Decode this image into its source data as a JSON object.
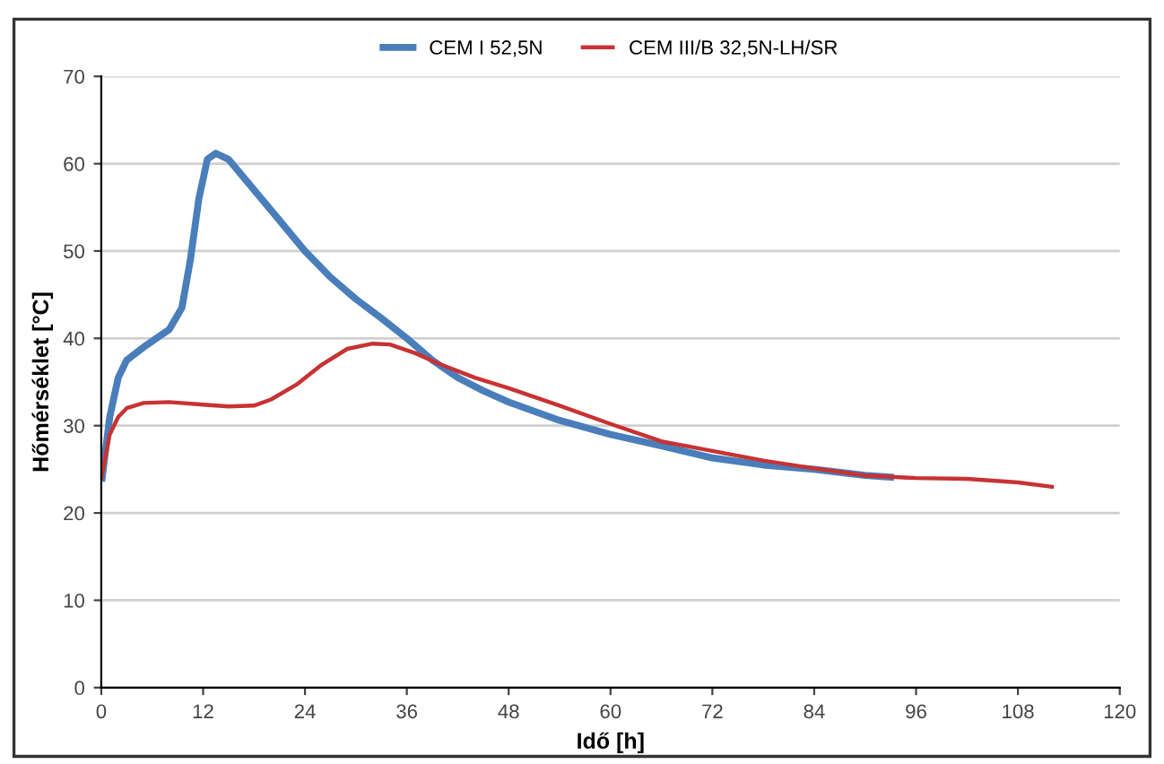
{
  "chart_data": {
    "type": "line",
    "xlabel": "Idő [h]",
    "ylabel": "Hőmérséklet [°C]",
    "xlim": [
      0,
      120
    ],
    "xticks": [
      0,
      12,
      24,
      36,
      48,
      60,
      72,
      84,
      96,
      108,
      120
    ],
    "ylim": [
      0,
      70
    ],
    "yticks": [
      0,
      10,
      20,
      30,
      40,
      50,
      60,
      70
    ],
    "grid": "y",
    "legend": "top",
    "marker": "none",
    "line_style": "solid",
    "series": [
      {
        "name": "CEM I 52,5N",
        "color": "#4a7ebb",
        "x": [
          0.1,
          1,
          2,
          3,
          5,
          8,
          9.5,
          10.5,
          11.5,
          12.5,
          13.5,
          15,
          18,
          21,
          24,
          27,
          30,
          33,
          36,
          39,
          42,
          45,
          48,
          54,
          60,
          66,
          72,
          78,
          84,
          90,
          93
        ],
        "values": [
          24,
          31,
          35.5,
          37.5,
          39,
          41,
          43.5,
          49,
          56,
          60.5,
          61.2,
          60.5,
          57,
          53.5,
          50,
          47,
          44.5,
          42.3,
          40,
          37.5,
          35.5,
          34,
          32.7,
          30.6,
          29,
          27.7,
          26.3,
          25.5,
          25,
          24.3,
          24.1
        ]
      },
      {
        "name": "CEM III/B 32,5N-LH/SR",
        "color": "#c83232",
        "x": [
          0,
          1,
          2,
          3,
          5,
          8,
          12,
          15,
          18,
          20,
          23,
          26,
          29,
          32,
          34,
          37,
          40,
          44,
          48,
          54,
          60,
          66,
          72,
          78,
          84,
          90,
          96,
          102,
          108,
          112
        ],
        "values": [
          24,
          29,
          31,
          32,
          32.6,
          32.7,
          32.4,
          32.2,
          32.3,
          33,
          34.7,
          37,
          38.8,
          39.4,
          39.3,
          38.3,
          37,
          35.5,
          34.3,
          32.3,
          30.2,
          28.2,
          27.1,
          26,
          25.1,
          24.3,
          24,
          23.9,
          23.5,
          23
        ]
      }
    ]
  }
}
